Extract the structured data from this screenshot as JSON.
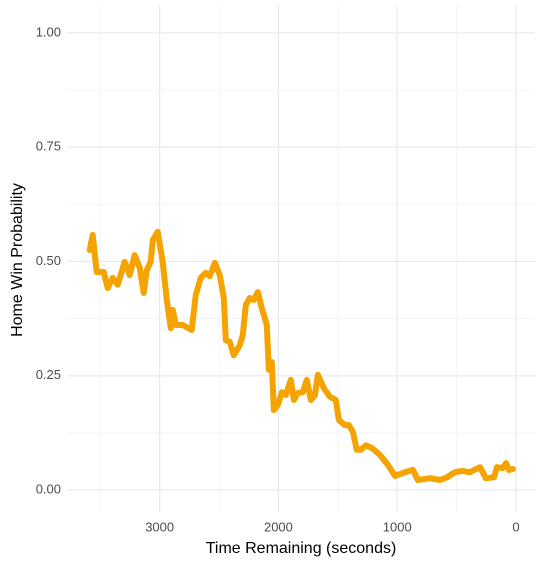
{
  "chart_data": {
    "type": "line",
    "x_label": "Time Remaining (seconds)",
    "y_label": "Home Win Probability",
    "xlim": [
      3780,
      -160
    ],
    "xticks": [
      3000,
      2000,
      1000,
      0
    ],
    "x_minor_gridlines": [
      3500,
      2500,
      1500,
      500
    ],
    "ylim": [
      -0.048,
      1.061
    ],
    "yticks": [
      {
        "value": 0,
        "label": "0.00"
      },
      {
        "value": 0.25,
        "label": "0.25"
      },
      {
        "value": 0.5,
        "label": "0.50"
      },
      {
        "value": 0.75,
        "label": "0.75"
      },
      {
        "value": 1,
        "label": "1.00"
      }
    ],
    "y_minor_gridlines": [
      0.125,
      0.375,
      0.625,
      0.875
    ],
    "grid": true,
    "series": [
      {
        "color": "#f5a300",
        "x": [
          3589,
          3564,
          3530,
          3471,
          3437,
          3395,
          3353,
          3294,
          3252,
          3210,
          3168,
          3134,
          3109,
          3075,
          3058,
          3016,
          2974,
          2940,
          2906,
          2889,
          2864,
          2805,
          2730,
          2696,
          2654,
          2612,
          2578,
          2536,
          2494,
          2460,
          2443,
          2409,
          2376,
          2325,
          2300,
          2275,
          2241,
          2207,
          2174,
          2140,
          2098,
          2081,
          2056,
          2039,
          2005,
          1971,
          1938,
          1896,
          1870,
          1837,
          1795,
          1761,
          1727,
          1693,
          1668,
          1618,
          1567,
          1517,
          1491,
          1441,
          1407,
          1373,
          1340,
          1306,
          1264,
          1213,
          1146,
          1078,
          1019,
          935,
          868,
          826,
          725,
          640,
          581,
          514,
          455,
          388,
          303,
          253,
          185,
          160,
          110,
          84,
          59,
          25
        ],
        "values": [
          0.525,
          0.558,
          0.477,
          0.477,
          0.442,
          0.464,
          0.449,
          0.499,
          0.47,
          0.514,
          0.486,
          0.431,
          0.481,
          0.499,
          0.547,
          0.565,
          0.499,
          0.416,
          0.354,
          0.394,
          0.361,
          0.361,
          0.35,
          0.427,
          0.464,
          0.475,
          0.468,
          0.497,
          0.47,
          0.42,
          0.328,
          0.324,
          0.295,
          0.317,
          0.339,
          0.405,
          0.42,
          0.416,
          0.433,
          0.398,
          0.361,
          0.263,
          0.28,
          0.175,
          0.186,
          0.214,
          0.208,
          0.241,
          0.197,
          0.212,
          0.214,
          0.241,
          0.197,
          0.208,
          0.252,
          0.223,
          0.204,
          0.197,
          0.153,
          0.142,
          0.142,
          0.127,
          0.088,
          0.088,
          0.098,
          0.092,
          0.077,
          0.055,
          0.031,
          0.039,
          0.044,
          0.022,
          0.026,
          0.022,
          0.028,
          0.039,
          0.042,
          0.039,
          0.05,
          0.026,
          0.028,
          0.05,
          0.048,
          0.059,
          0.044,
          0.046
        ]
      }
    ]
  }
}
